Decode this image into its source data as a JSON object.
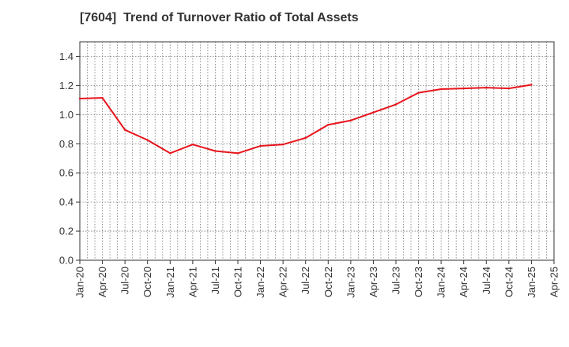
{
  "chart_data": {
    "type": "line",
    "title": "[7604]  Trend of Turnover Ratio of Total Assets",
    "xlabel": "",
    "ylabel": "",
    "ylim": [
      0,
      1.5
    ],
    "y_ticks": [
      "0.0",
      "0.2",
      "0.4",
      "0.6",
      "0.8",
      "1.0",
      "1.2",
      "1.4"
    ],
    "x_ticks": [
      "Jan-20",
      "Apr-20",
      "Jul-20",
      "Oct-20",
      "Jan-21",
      "Apr-21",
      "Jul-21",
      "Oct-21",
      "Jan-22",
      "Apr-22",
      "Jul-22",
      "Oct-22",
      "Jan-23",
      "Apr-23",
      "Jul-23",
      "Oct-23",
      "Jan-24",
      "Apr-24",
      "Jul-24",
      "Oct-24",
      "Jan-25",
      "Apr-25"
    ],
    "grid": true,
    "series": [
      {
        "color": "#e8141c",
        "x": [
          "Jan-20",
          "Apr-20",
          "Jul-20",
          "Oct-20",
          "Jan-21",
          "Apr-21",
          "Jul-21",
          "Oct-21",
          "Jan-22",
          "Apr-22",
          "Jul-22",
          "Oct-22",
          "Jan-23",
          "Apr-23",
          "Jul-23",
          "Oct-23",
          "Jan-24",
          "Apr-24",
          "Jul-24",
          "Oct-24",
          "Jan-25"
        ],
        "values": [
          1.11,
          1.115,
          0.895,
          0.825,
          0.735,
          0.795,
          0.75,
          0.735,
          0.785,
          0.795,
          0.84,
          0.93,
          0.96,
          1.015,
          1.07,
          1.15,
          1.175,
          1.18,
          1.185,
          1.18,
          1.205
        ]
      }
    ]
  }
}
